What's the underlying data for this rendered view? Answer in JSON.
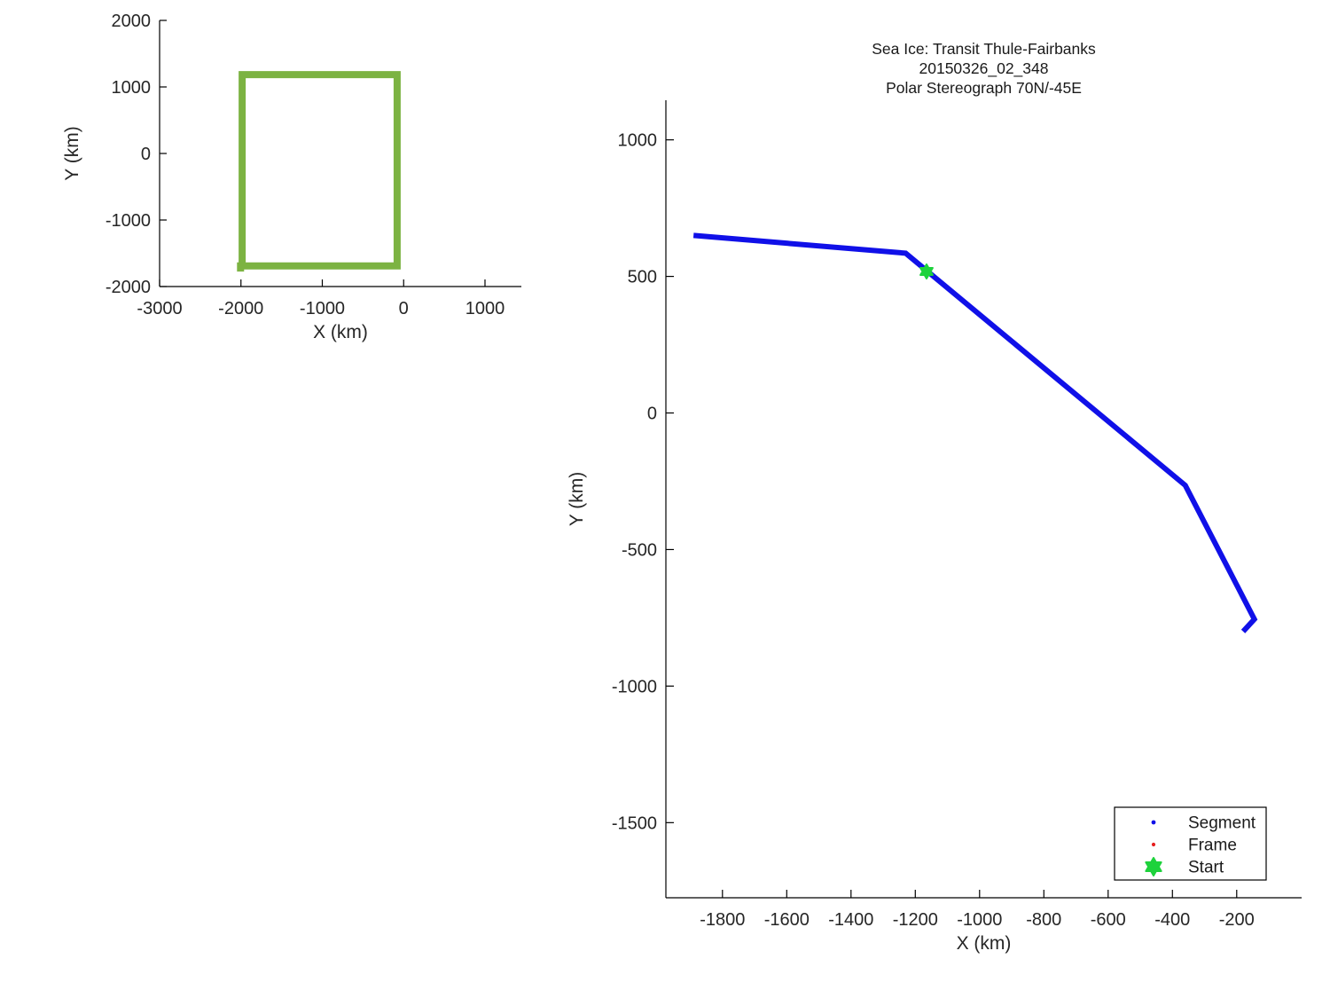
{
  "figure": {
    "background": "#ffffff",
    "text_color": "#262626",
    "title_color": "#1a1a1a",
    "axis_color": "#000000"
  },
  "title": {
    "line1": "Sea Ice: Transit Thule-Fairbanks",
    "line2": "20150326_02_348",
    "line3": "Polar Stereograph 70N/-45E"
  },
  "chart_data": [
    {
      "id": "overview",
      "type": "line",
      "title": [],
      "xlabel": "X (km)",
      "ylabel": "Y (km)",
      "xlim": [
        -3000,
        1447
      ],
      "ylim": [
        -2000,
        2000
      ],
      "xticks": [
        -3000,
        -2000,
        -1000,
        0,
        1000
      ],
      "yticks": [
        2000,
        1000,
        0,
        -1000,
        -2000
      ],
      "grid": false,
      "legend": null,
      "series": [
        {
          "name": "grid-boundary-box",
          "color": "#7CB342",
          "line_width": 8,
          "x": [
            -1985,
            -1985,
            -80,
            -80,
            -2005,
            -2005
          ],
          "y": [
            -1690,
            1185,
            1185,
            -1690,
            -1690,
            -1775
          ]
        }
      ],
      "markers": []
    },
    {
      "id": "transit",
      "type": "line",
      "title": [
        "Sea Ice: Transit Thule-Fairbanks",
        "20150326_02_348",
        "Polar Stereograph 70N/-45E"
      ],
      "xlabel": "X (km)",
      "ylabel": "Y (km)",
      "xlim": [
        -1976,
        2
      ],
      "ylim": [
        -1775,
        1145
      ],
      "xticks": [
        -1800,
        -1600,
        -1400,
        -1200,
        -1000,
        -800,
        -600,
        -400,
        -200
      ],
      "yticks": [
        1000,
        500,
        0,
        -500,
        -1000,
        -1500
      ],
      "grid": false,
      "series": [
        {
          "name": "segment-track-line",
          "legend_label": "Segment",
          "color": "#1010E8",
          "line_width": 6,
          "x": [
            -1890,
            -1230,
            -360,
            -145,
            -180
          ],
          "y": [
            650,
            585,
            -265,
            -755,
            -800
          ]
        }
      ],
      "markers": [
        {
          "name": "start-marker",
          "shape": "hexagram",
          "color": "#1ED23C",
          "size": 8,
          "x": -1165,
          "y": 518
        }
      ],
      "legend": {
        "position": "bottom-right",
        "entries": [
          {
            "label": "Segment",
            "marker": "dot",
            "color": "#1010E8",
            "size": 2.4
          },
          {
            "label": "Frame",
            "marker": "dot",
            "color": "#E62020",
            "size": 2.1
          },
          {
            "label": "Start",
            "marker": "hexagram",
            "color": "#1ED23C",
            "size": 10
          }
        ]
      }
    }
  ]
}
